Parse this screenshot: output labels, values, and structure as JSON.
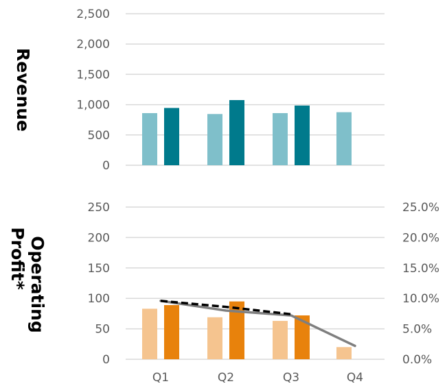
{
  "chart_data": [
    {
      "type": "bar",
      "ylabel": "Revenue",
      "ylim": [
        0,
        2500
      ],
      "yticks": [
        "0",
        "500",
        "1,000",
        "1,500",
        "2,000",
        "2,500"
      ],
      "categories": [
        "Q1",
        "Q2",
        "Q3",
        "Q4"
      ],
      "series": [
        {
          "values": [
            860,
            845,
            860,
            875
          ],
          "color": "#7fbfca"
        },
        {
          "values": [
            945,
            1075,
            985,
            null
          ],
          "color": "#007a8c"
        }
      ],
      "grid": true
    },
    {
      "type": "bar",
      "ylabel_lines": [
        "Operating",
        "Profit*"
      ],
      "ylim": [
        0,
        250
      ],
      "yticks": [
        "0",
        "50",
        "100",
        "150",
        "200",
        "250"
      ],
      "y2lim": [
        0,
        0.25
      ],
      "y2ticks": [
        "0.0%",
        "5.0%",
        "10.0%",
        "15.0%",
        "20.0%",
        "25.0%"
      ],
      "categories": [
        "Q1",
        "Q2",
        "Q3",
        "Q4"
      ],
      "series": [
        {
          "values": [
            83,
            69,
            63,
            20
          ],
          "color": "#f5c48f"
        },
        {
          "values": [
            89,
            95,
            72,
            null
          ],
          "color": "#e8820c"
        }
      ],
      "lines": [
        {
          "axis": "secondary",
          "values": [
            0.096,
            0.08,
            0.072,
            0.022
          ],
          "color": "#7f7f7f",
          "dash": false
        },
        {
          "axis": "secondary",
          "values": [
            0.096,
            0.086,
            0.074,
            null
          ],
          "color": "#000000",
          "dash": true
        }
      ],
      "grid": true
    }
  ]
}
